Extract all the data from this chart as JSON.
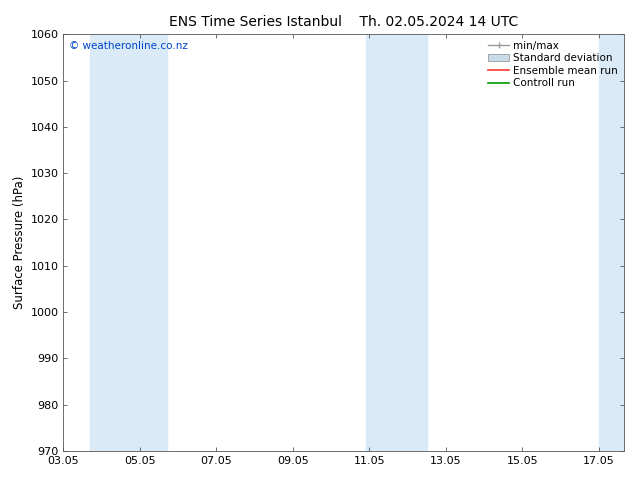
{
  "title_left": "ENS Time Series Istanbul",
  "title_right": "Th. 02.05.2024 14 UTC",
  "ylabel": "Surface Pressure (hPa)",
  "ylim": [
    970,
    1060
  ],
  "yticks": [
    970,
    980,
    990,
    1000,
    1010,
    1020,
    1030,
    1040,
    1050,
    1060
  ],
  "xlim_min": 0,
  "xlim_max": 14.67,
  "xtick_labels": [
    "03.05",
    "05.05",
    "07.05",
    "09.05",
    "11.05",
    "13.05",
    "15.05",
    "17.05"
  ],
  "xtick_positions": [
    0,
    2,
    4,
    6,
    8,
    10,
    12,
    14
  ],
  "bg_color": "#ffffff",
  "plot_bg_color": "#ffffff",
  "shaded_bands": [
    {
      "x_start": 0.7,
      "x_end": 2.7,
      "color": "#daeaf7"
    },
    {
      "x_start": 7.9,
      "x_end": 9.5,
      "color": "#daeaf7"
    },
    {
      "x_start": 14.0,
      "x_end": 14.67,
      "color": "#daeaf7"
    }
  ],
  "watermark": "© weatheronline.co.nz",
  "watermark_color": "#0044cc",
  "legend_items": [
    {
      "label": "min/max",
      "color": "#b0c8e0",
      "type": "minmax"
    },
    {
      "label": "Standard deviation",
      "color": "#c8dcea",
      "type": "patch"
    },
    {
      "label": "Ensemble mean run",
      "color": "#ff3333",
      "type": "line"
    },
    {
      "label": "Controll run",
      "color": "#009900",
      "type": "line"
    }
  ],
  "title_fontsize": 10,
  "axis_label_fontsize": 8.5,
  "tick_fontsize": 8,
  "legend_fontsize": 7.5,
  "watermark_fontsize": 7.5
}
